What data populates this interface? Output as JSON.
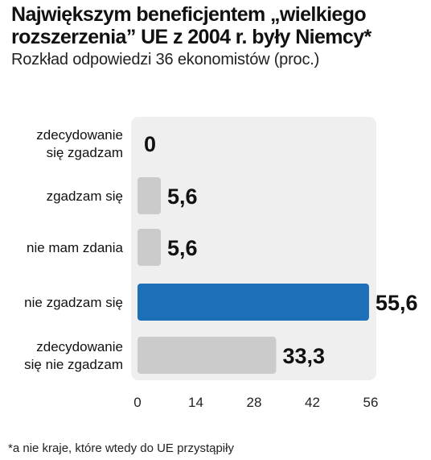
{
  "title": "Największym beneficjentem „wielkiego rozszerzenia” UE z 2004 r. były Niemcy*",
  "subtitle": "Rozkład odpowiedzi 36 ekonomistów (proc.)",
  "footnote": "*a nie kraje, które wtedy do UE przystąpiły",
  "colors": {
    "panel": "#efefef",
    "bar": "#cbcbcb",
    "highlight": "#1d6fb8"
  },
  "chart_data": {
    "type": "bar",
    "orientation": "horizontal",
    "categories": [
      [
        "zdecydowanie",
        "się zgadzam"
      ],
      [
        "zgadzam się"
      ],
      [
        "nie mam zdania"
      ],
      [
        "nie zgadzam się"
      ],
      [
        "zdecydowanie",
        "się nie zgadzam"
      ]
    ],
    "values": [
      0,
      5.6,
      5.6,
      55.6,
      33.3
    ],
    "value_labels": [
      "0",
      "5,6",
      "5,6",
      "55,6",
      "33,3"
    ],
    "highlight_index": 3,
    "xlim": [
      0,
      56
    ],
    "xticks": [
      0,
      14,
      28,
      42,
      56
    ],
    "grid": false
  }
}
